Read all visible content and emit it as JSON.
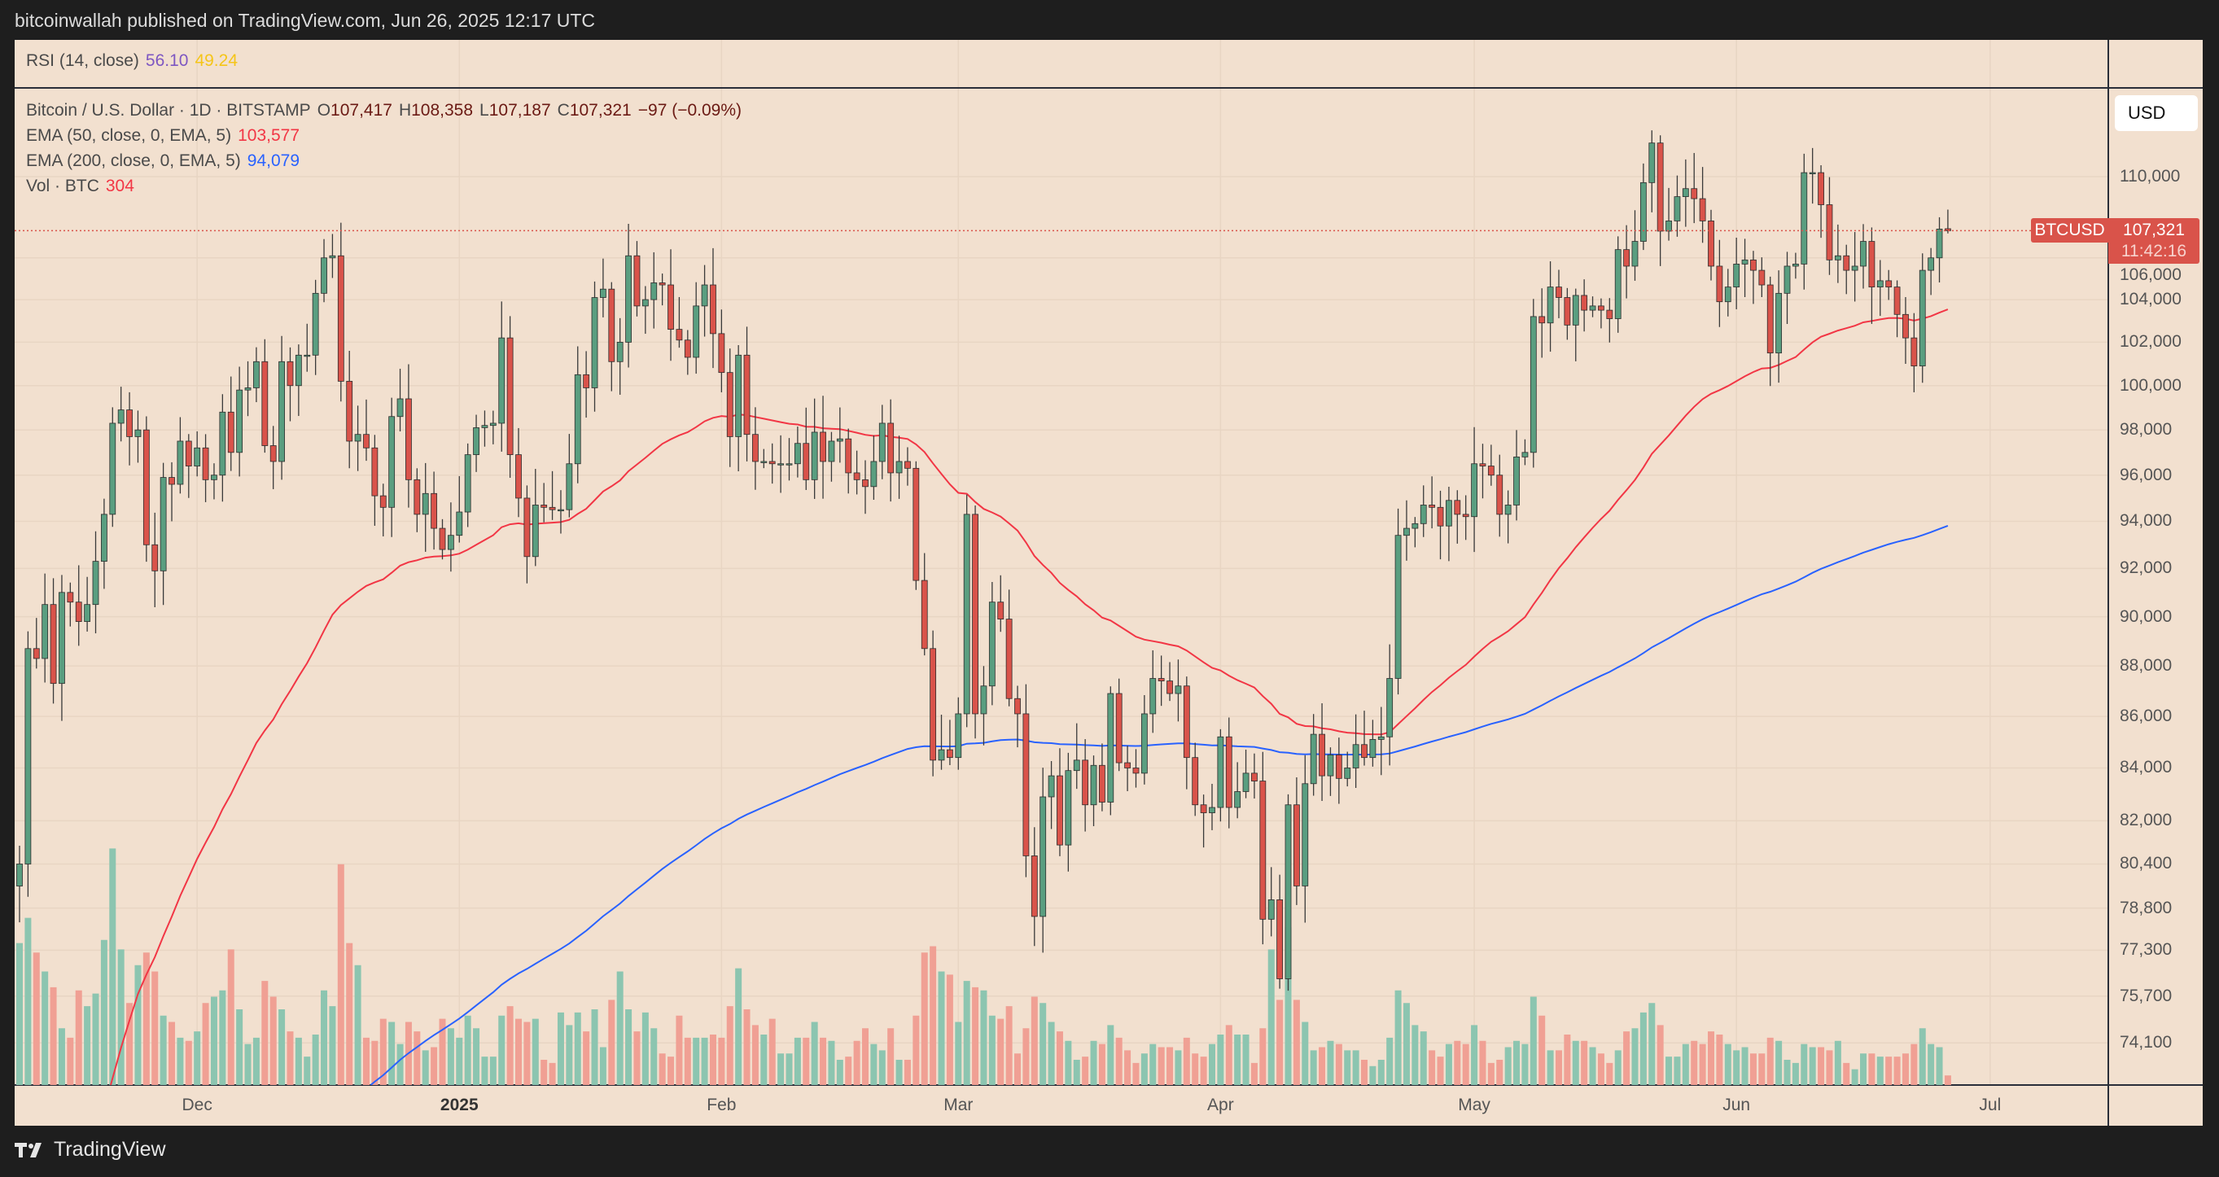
{
  "header": {
    "published": "bitcoinwallah published on TradingView.com, Jun 26, 2025 12:17 UTC"
  },
  "rsi": {
    "label": "RSI (14, close)",
    "value1": "56.10",
    "value2": "49.24",
    "color1": "#7e57c2",
    "color2": "#f5c518"
  },
  "legend": {
    "symbol": "Bitcoin / U.S. Dollar · 1D · BITSTAMP",
    "o_label": "O",
    "o": "107,417",
    "h_label": "H",
    "h": "108,358",
    "l_label": "L",
    "l": "107,187",
    "c_label": "C",
    "c": "107,321",
    "change": "−97 (−0.09%)",
    "ema50_label": "EMA (50, close, 0, EMA, 5)",
    "ema50_value": "103,577",
    "ema200_label": "EMA (200, close, 0, EMA, 5)",
    "ema200_value": "94,079",
    "vol_label": "Vol · BTC",
    "vol_value": "304"
  },
  "price_axis": {
    "currency": "USD",
    "symbol_label": "BTCUSD",
    "last_price": "107,321",
    "countdown": "11:42:16",
    "ticks": [
      "110,000",
      "106,000",
      "104,000",
      "102,000",
      "100,000",
      "98,000",
      "96,000",
      "94,000",
      "92,000",
      "90,000",
      "88,000",
      "86,000",
      "84,000",
      "82,000",
      "80,400",
      "78,800",
      "77,300",
      "75,700",
      "74,100"
    ]
  },
  "time_axis": {
    "labels": [
      {
        "text": "Dec",
        "date": "2024-12-01",
        "bold": false
      },
      {
        "text": "2025",
        "date": "2025-01-01",
        "bold": true
      },
      {
        "text": "Feb",
        "date": "2025-02-01",
        "bold": false
      },
      {
        "text": "Mar",
        "date": "2025-03-01",
        "bold": false
      },
      {
        "text": "Apr",
        "date": "2025-04-01",
        "bold": false
      },
      {
        "text": "May",
        "date": "2025-05-01",
        "bold": false
      },
      {
        "text": "Jun",
        "date": "2025-06-01",
        "bold": false
      },
      {
        "text": "Jul",
        "date": "2025-07-01",
        "bold": false
      }
    ]
  },
  "brand": {
    "name": "TradingView"
  },
  "colors": {
    "up": "#5a9e80",
    "down": "#d9534a",
    "vol_up": "#8cc5b0",
    "vol_down": "#f0a094",
    "ema50": "#f23645",
    "ema200": "#2962ff",
    "background": "#f2e0cf"
  },
  "chart_data": {
    "type": "candlestick",
    "title": "Bitcoin / U.S. Dollar · 1D · BITSTAMP",
    "start_date": "2024-11-10",
    "scale": "log",
    "ylim": [
      73000,
      113000
    ],
    "last_ohlc": [
      107417,
      108358,
      107187,
      107321
    ],
    "ema_seed": {
      "ema50": 62000,
      "ema200": 60000
    },
    "closes_k": [
      80.4,
      88.7,
      88.3,
      90.5,
      87.3,
      91.0,
      90.6,
      89.8,
      90.5,
      92.3,
      94.3,
      98.3,
      98.9,
      97.7,
      98.0,
      93.0,
      91.9,
      95.9,
      95.6,
      97.5,
      96.4,
      97.2,
      95.8,
      96.0,
      98.8,
      97.0,
      99.8,
      99.9,
      101.1,
      97.3,
      96.6,
      101.1,
      100.0,
      101.4,
      101.4,
      104.3,
      106.0,
      106.1,
      100.2,
      97.5,
      97.8,
      97.2,
      95.1,
      94.6,
      98.6,
      99.4,
      95.8,
      94.3,
      95.2,
      93.7,
      92.8,
      93.4,
      94.4,
      96.9,
      98.1,
      98.2,
      98.3,
      102.2,
      96.9,
      95.0,
      92.5,
      94.7,
      94.6,
      94.5,
      94.5,
      96.5,
      100.5,
      99.9,
      104.1,
      104.5,
      101.1,
      102.0,
      106.1,
      103.7,
      104.0,
      104.8,
      104.7,
      102.6,
      102.1,
      101.3,
      103.7,
      104.7,
      102.4,
      100.6,
      97.7,
      101.4,
      97.8,
      96.6,
      96.6,
      96.5,
      96.5,
      96.5,
      97.4,
      95.8,
      97.9,
      96.6,
      97.5,
      97.6,
      96.1,
      95.8,
      95.5,
      96.6,
      98.3,
      96.1,
      96.6,
      96.3,
      91.5,
      88.7,
      84.3,
      84.7,
      84.4,
      86.1,
      94.3,
      86.1,
      87.2,
      90.6,
      89.9,
      86.7,
      86.1,
      80.7,
      78.5,
      82.9,
      83.7,
      81.1,
      83.9,
      84.3,
      82.6,
      84.1,
      82.7,
      86.9,
      84.2,
      84.0,
      83.8,
      86.1,
      87.5,
      87.4,
      86.9,
      87.2,
      84.4,
      82.6,
      82.3,
      82.5,
      85.2,
      82.5,
      83.1,
      83.8,
      83.5,
      78.4,
      79.1,
      76.3,
      82.6,
      79.6,
      83.4,
      85.3,
      83.7,
      84.5,
      83.6,
      84.0,
      84.9,
      84.4,
      85.1,
      85.2,
      87.5,
      93.4,
      93.7,
      93.9,
      94.7,
      94.6,
      93.8,
      94.9,
      94.3,
      94.2,
      96.5,
      96.4,
      96.0,
      94.3,
      94.7,
      96.8,
      97.0,
      103.2,
      102.9,
      104.6,
      104.1,
      102.8,
      104.2,
      103.5,
      103.7,
      103.5,
      103.1,
      106.4,
      105.6,
      106.8,
      109.7,
      111.7,
      107.3,
      107.8,
      109.0,
      109.4,
      108.9,
      107.8,
      105.6,
      103.9,
      104.6,
      105.7,
      105.9,
      105.4,
      104.7,
      101.5,
      104.3,
      105.6,
      105.7,
      110.2,
      110.2,
      108.6,
      105.9,
      106.1,
      105.4,
      105.6,
      106.8,
      104.6,
      104.9,
      104.6,
      103.3,
      102.2,
      100.9,
      105.4,
      106.0,
      107.4,
      107.3
    ],
    "volume_btc": [
      4500,
      5300,
      4200,
      3600,
      3100,
      1800,
      1500,
      3000,
      2500,
      2900,
      4600,
      7500,
      4300,
      2600,
      3800,
      4200,
      3600,
      2200,
      2000,
      1500,
      1400,
      1700,
      2600,
      2800,
      3000,
      4300,
      2400,
      1300,
      1500,
      3300,
      2800,
      2400,
      1700,
      1500,
      900,
      1600,
      3000,
      2500,
      7000,
      4500,
      3800,
      1500,
      1400,
      2100,
      2000,
      1300,
      2000,
      1700,
      1100,
      1200,
      2100,
      1800,
      1500,
      2200,
      1800,
      900,
      900,
      2200,
      2500,
      2100,
      2000,
      2100,
      800,
      700,
      2300,
      1900,
      2300,
      1700,
      2400,
      1200,
      2700,
      3600,
      2400,
      1700,
      2300,
      1800,
      1000,
      900,
      2200,
      1500,
      1500,
      1500,
      1600,
      1500,
      2500,
      3700,
      2400,
      1900,
      1600,
      2100,
      1000,
      1000,
      1500,
      1500,
      2000,
      1500,
      1400,
      800,
      900,
      1400,
      1800,
      1300,
      1100,
      1800,
      800,
      800,
      2200,
      4200,
      4400,
      3600,
      3500,
      2000,
      3300,
      3100,
      3000,
      2200,
      2100,
      2500,
      1000,
      1800,
      2800,
      2600,
      2000,
      1700,
      1400,
      800,
      900,
      1400,
      1300,
      1900,
      1500,
      1100,
      700,
      1000,
      1300,
      1200,
      1200,
      1100,
      1500,
      1000,
      900,
      1300,
      1600,
      1900,
      1600,
      1600,
      700,
      1800,
      4300,
      2700,
      5000,
      2700,
      2000,
      1100,
      1200,
      1400,
      1300,
      1100,
      1100,
      800,
      600,
      800,
      1500,
      3000,
      2600,
      1900,
      1700,
      1100,
      900,
      1300,
      1400,
      1300,
      1900,
      1400,
      700,
      800,
      1200,
      1400,
      1300,
      2800,
      2200,
      1100,
      1100,
      1600,
      1400,
      1400,
      1200,
      1000,
      700,
      1100,
      1700,
      1800,
      2300,
      2600,
      1900,
      900,
      900,
      1300,
      1400,
      1300,
      1700,
      1600,
      1300,
      1100,
      1200,
      1000,
      1000,
      1500,
      1400,
      800,
      700,
      1300,
      1200,
      1200,
      1100,
      1400,
      700,
      500,
      1000,
      1000,
      900,
      900,
      900,
      1000,
      1300,
      1800,
      1300,
      1200,
      304
    ]
  }
}
